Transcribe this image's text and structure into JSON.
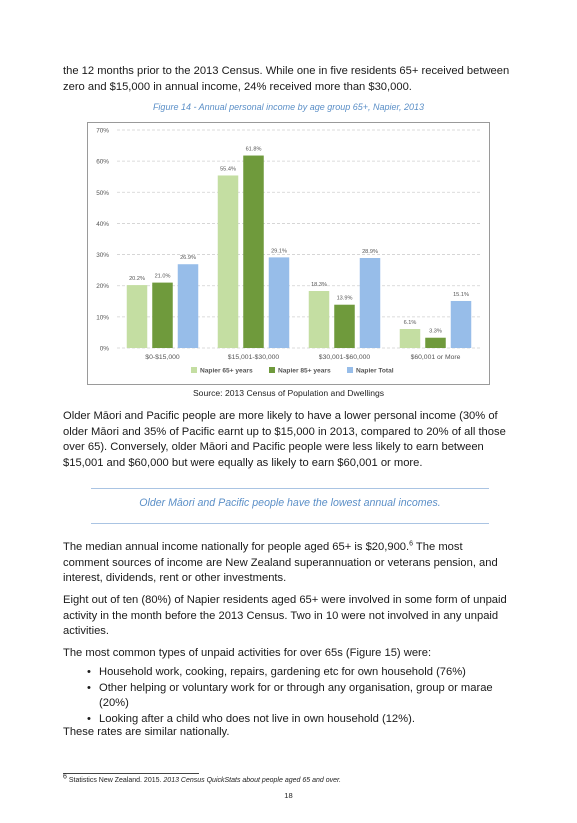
{
  "paragraphs": {
    "intro": "the 12 months prior to the 2013 Census. While one in five residents 65+ received between zero and $15,000 in annual income, 24% received more than $30,000.",
    "maori_pacific": "Older Māori and Pacific people are more likely to have a lower personal income (30% of older Māori and 35% of Pacific earnt up to $15,000 in 2013, compared to 20% of all those over 65). Conversely, older Māori and Pacific people were less likely to earn between $15,001 and $60,000 but were equally as likely to earn $60,001 or more.",
    "median_a": "The median annual income nationally for people aged 65+ is $20,900.",
    "median_ref": "6",
    "median_b": " The most comment sources of income are New Zealand superannuation or veterans pension, and interest, dividends, rent or other investments.",
    "unpaid": "Eight out of ten (80%) of Napier residents aged 65+ were involved in some form of unpaid activity in the month before the 2013 Census. Two in 10 were not involved in any unpaid activities.",
    "common_types": "The most common types of unpaid activities for over 65s (Figure 15) were:",
    "similar": "These rates are similar nationally."
  },
  "bullets": [
    "Household work, cooking, repairs, gardening etc for own household (76%)",
    "Other helping or voluntary work for or through any organisation, group or marae (20%)",
    "Looking after a child who does not live in own household (12%)."
  ],
  "bullet_glyph": "•",
  "figure": {
    "caption": "Figure 14 - Annual personal income by age group 65+, Napier, 2013",
    "source": "Source: 2013 Census of Population and Dwellings"
  },
  "pull_quote": "Older Māori and Pacific people have the lowest annual incomes.",
  "footnote": {
    "marker": "6",
    "text_plain": " Statistics New Zealand. 2015. ",
    "text_italic": "2013 Census QuickStats about people aged 65 and over."
  },
  "page_number": "18",
  "colors": {
    "accent": "#5b8fc7"
  },
  "chart_data": {
    "type": "bar",
    "categories": [
      "$0-$15,000",
      "$15,001-$30,000",
      "$30,001-$60,000",
      "$60,001 or More"
    ],
    "series": [
      {
        "name": "Napier 65+ years",
        "values": [
          20.2,
          55.4,
          18.3,
          6.1
        ],
        "labels": [
          "20.2%",
          "55.4%",
          "18.3%",
          "6.1%"
        ],
        "color": "#c4dea2"
      },
      {
        "name": "Napier 85+ years",
        "values": [
          21.0,
          61.8,
          13.9,
          3.3
        ],
        "labels": [
          "21.0%",
          "61.8%",
          "13.9%",
          "3.3%"
        ],
        "color": "#6f9a3c"
      },
      {
        "name": "Napier Total",
        "values": [
          26.9,
          29.1,
          28.9,
          15.1
        ],
        "labels": [
          "26.9%",
          "29.1%",
          "28.9%",
          "15.1%"
        ],
        "color": "#97bde9"
      }
    ],
    "y_ticks": [
      "0%",
      "10%",
      "20%",
      "30%",
      "40%",
      "50%",
      "60%",
      "70%"
    ],
    "ylim": [
      0,
      70
    ],
    "grid": true,
    "legend": "bottom"
  }
}
